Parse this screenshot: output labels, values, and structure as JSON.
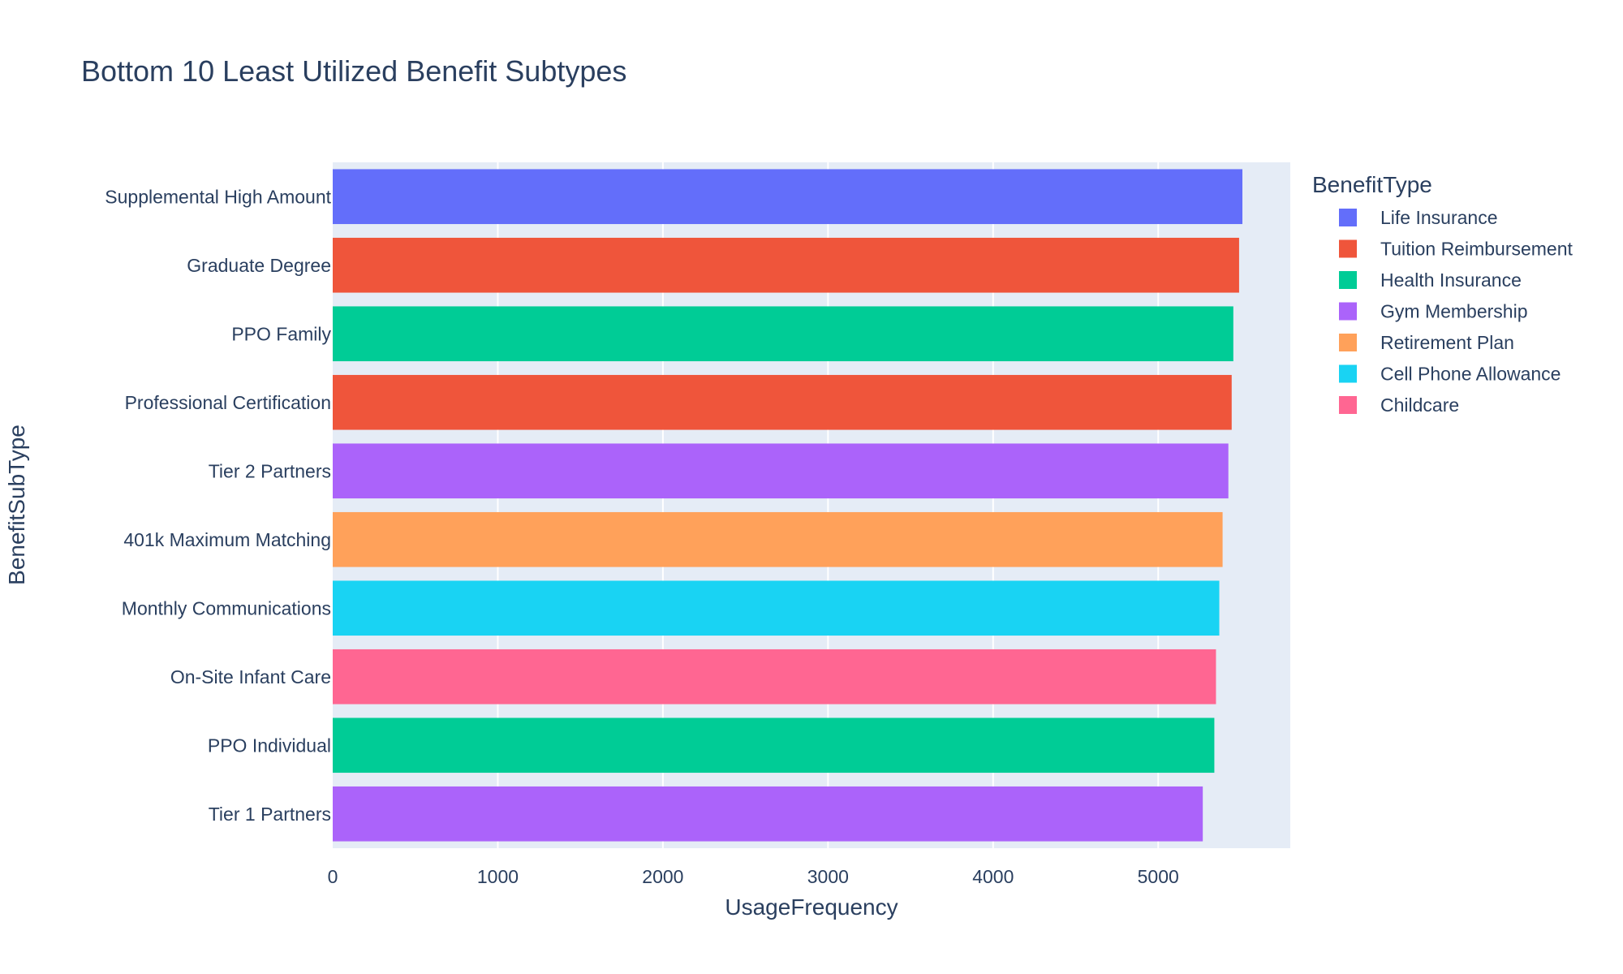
{
  "chart_data": {
    "type": "bar",
    "orientation": "horizontal",
    "title": "Bottom 10 Least Utilized Benefit Subtypes",
    "xlabel": "UsageFrequency",
    "ylabel": "BenefitSubType",
    "xlim": [
      0,
      5800
    ],
    "x_ticks": [
      0,
      1000,
      2000,
      3000,
      4000,
      5000
    ],
    "x_tick_labels": [
      "0",
      "1000",
      "2000",
      "3000",
      "4000",
      "5000"
    ],
    "grid": "vertical",
    "legend_position": "right",
    "legend_title": "BenefitType",
    "legend": [
      {
        "name": "Life Insurance",
        "color": "#636efa"
      },
      {
        "name": "Tuition Reimbursement",
        "color": "#ef553b"
      },
      {
        "name": "Health Insurance",
        "color": "#00cc96"
      },
      {
        "name": "Gym Membership",
        "color": "#ab63fa"
      },
      {
        "name": "Retirement Plan",
        "color": "#ffa15a"
      },
      {
        "name": "Cell Phone Allowance",
        "color": "#19d3f3"
      },
      {
        "name": "Childcare",
        "color": "#ff6692"
      }
    ],
    "bars": [
      {
        "category": "Supplemental High Amount",
        "value": 5510,
        "type": "Life Insurance"
      },
      {
        "category": "Graduate Degree",
        "value": 5490,
        "type": "Tuition Reimbursement"
      },
      {
        "category": "PPO Family",
        "value": 5455,
        "type": "Health Insurance"
      },
      {
        "category": "Professional Certification",
        "value": 5445,
        "type": "Tuition Reimbursement"
      },
      {
        "category": "Tier 2 Partners",
        "value": 5425,
        "type": "Gym Membership"
      },
      {
        "category": "401k Maximum Matching",
        "value": 5390,
        "type": "Retirement Plan"
      },
      {
        "category": "Monthly Communications",
        "value": 5370,
        "type": "Cell Phone Allowance"
      },
      {
        "category": "On-Site Infant Care",
        "value": 5350,
        "type": "Childcare"
      },
      {
        "category": "PPO Individual",
        "value": 5340,
        "type": "Health Insurance"
      },
      {
        "category": "Tier 1 Partners",
        "value": 5270,
        "type": "Gym Membership"
      }
    ]
  }
}
